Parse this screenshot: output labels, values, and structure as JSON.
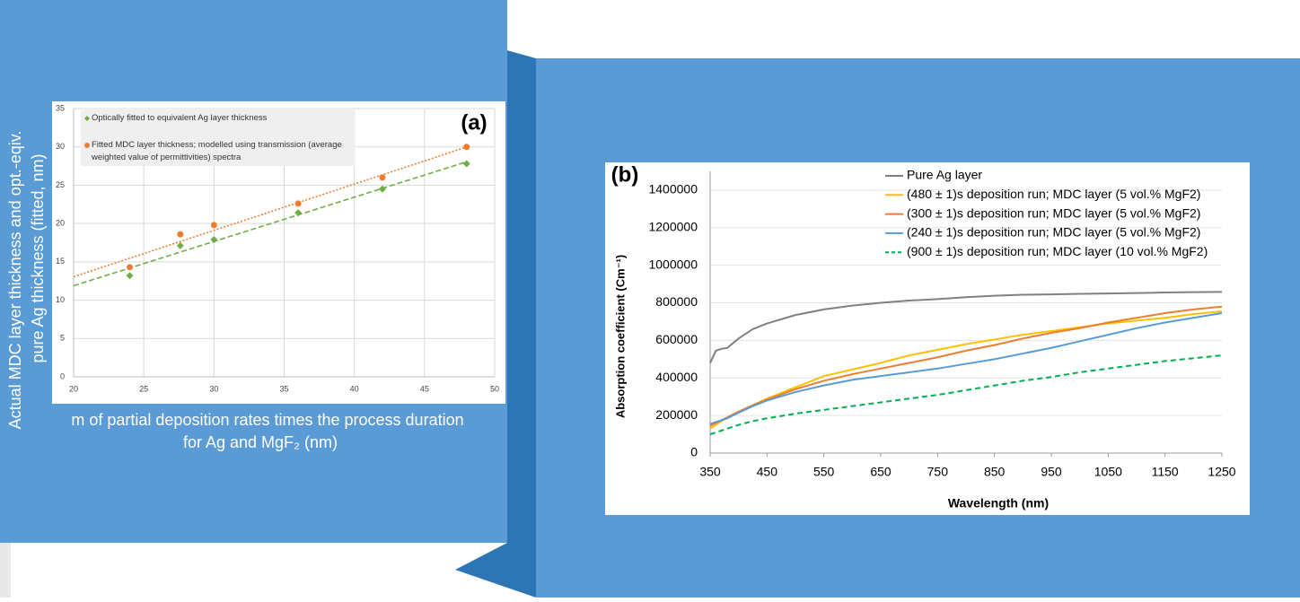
{
  "chart_data": [
    {
      "type": "scatter",
      "annotation": "(a)",
      "xlabel": [
        "m of partial deposition rates times the process duration",
        "for Ag and MgF₂ (nm)"
      ],
      "ylabel": [
        "Actual MDC layer thickness and opt.-eqiv.",
        "pure Ag thickness (fitted, nm)"
      ],
      "xlim": [
        20,
        50
      ],
      "xticks": [
        20,
        25,
        30,
        35,
        40,
        45,
        50
      ],
      "ylim": [
        0,
        35
      ],
      "yticks": [
        0,
        5,
        10,
        15,
        20,
        25,
        30,
        35
      ],
      "grid": true,
      "trendline": true,
      "series": [
        {
          "name": "Optically fitted to equivalent Ag layer thickness",
          "color": "#70ad47",
          "marker": "diamond",
          "x": [
            24,
            27.6,
            30,
            36,
            42,
            48
          ],
          "values": [
            13.2,
            17.1,
            17.9,
            21.4,
            24.5,
            27.8
          ]
        },
        {
          "name": "Fitted MDC layer thickness; modelled using transmission (average weighted value of permittivities) spectra",
          "color": "#ed7d31",
          "marker": "circle",
          "x": [
            24,
            27.6,
            30,
            36,
            42,
            48
          ],
          "values": [
            14.3,
            18.6,
            19.8,
            22.6,
            26.0,
            30.0
          ]
        }
      ]
    },
    {
      "type": "line",
      "annotation": "(b)",
      "xlabel": "Wavelength (nm)",
      "ylabel": "Absorption coefficient (Cm⁻¹)",
      "x": [
        350,
        360,
        370,
        380,
        400,
        425,
        450,
        500,
        550,
        600,
        650,
        700,
        750,
        800,
        850,
        900,
        950,
        1000,
        1050,
        1100,
        1150,
        1200,
        1250
      ],
      "xlim": [
        350,
        1250
      ],
      "xticks": [
        350,
        450,
        550,
        650,
        750,
        850,
        950,
        1050,
        1150,
        1250
      ],
      "ylim": [
        0,
        1500000
      ],
      "yticks": [
        0,
        200000,
        400000,
        600000,
        800000,
        1000000,
        1200000,
        1400000
      ],
      "grid": true,
      "series": [
        {
          "name": "Pure Ag layer",
          "color": "#808080",
          "dashed": false,
          "values": [
            480000,
            545000,
            555000,
            560000,
            610000,
            660000,
            690000,
            735000,
            765000,
            785000,
            800000,
            812000,
            820000,
            830000,
            838000,
            843000,
            845000,
            848000,
            850000,
            852000,
            855000,
            857000,
            858000
          ]
        },
        {
          "name": "(480 ± 1)s deposition run; MDC layer  (5 vol.% MgF2)",
          "color": "#ffc000",
          "dashed": false,
          "values": [
            130000,
            150000,
            170000,
            190000,
            220000,
            255000,
            290000,
            350000,
            410000,
            445000,
            480000,
            520000,
            550000,
            580000,
            605000,
            630000,
            650000,
            670000,
            690000,
            705000,
            720000,
            740000,
            755000
          ]
        },
        {
          "name": "(300 ± 1)s deposition run; MDC layer (5 vol.% MgF2)",
          "color": "#ed7d31",
          "dashed": false,
          "values": [
            145000,
            160000,
            175000,
            190000,
            220000,
            255000,
            285000,
            340000,
            385000,
            420000,
            450000,
            480000,
            510000,
            545000,
            575000,
            610000,
            640000,
            665000,
            695000,
            720000,
            745000,
            765000,
            780000
          ]
        },
        {
          "name": "(240 ± 1)s deposition run; MDC layer (5 vol.% MgF2)",
          "color": "#5b9bd5",
          "dashed": false,
          "values": [
            155000,
            165000,
            175000,
            185000,
            215000,
            250000,
            280000,
            325000,
            360000,
            390000,
            410000,
            430000,
            450000,
            475000,
            500000,
            530000,
            560000,
            595000,
            630000,
            665000,
            695000,
            720000,
            745000
          ]
        },
        {
          "name": "(900 ± 1)s deposition run; MDC layer (10 vol.% MgF2)",
          "color": "#00b050",
          "dashed": true,
          "values": [
            100000,
            110000,
            120000,
            130000,
            150000,
            170000,
            185000,
            210000,
            230000,
            250000,
            270000,
            290000,
            310000,
            335000,
            360000,
            385000,
            405000,
            430000,
            450000,
            470000,
            490000,
            505000,
            520000
          ]
        }
      ]
    }
  ]
}
